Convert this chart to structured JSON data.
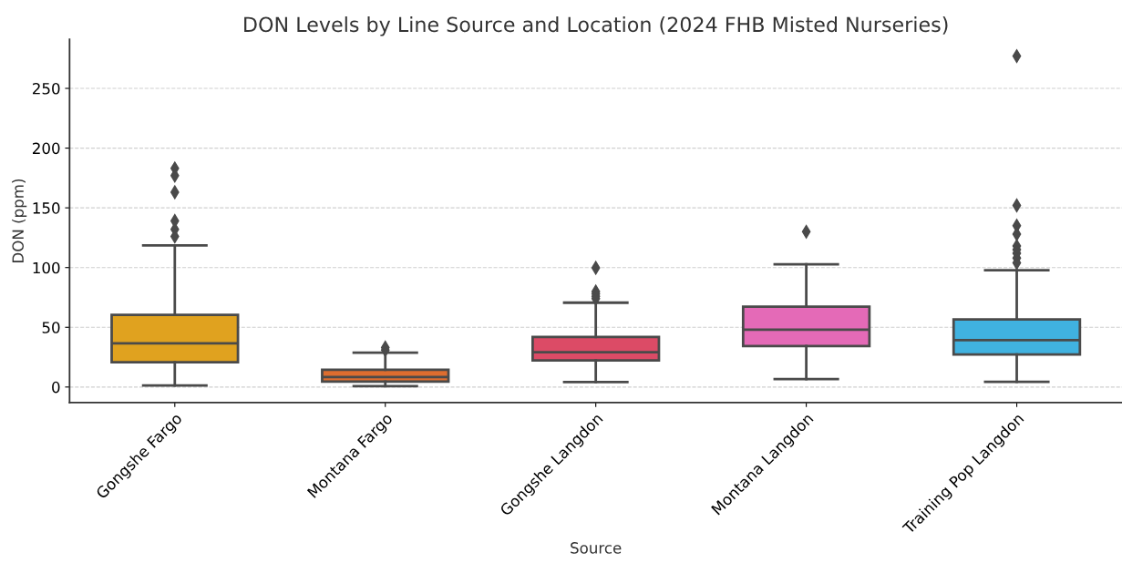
{
  "chart_data": {
    "type": "box",
    "title": "DON Levels by Line Source and Location (2024 FHB Misted Nurseries)",
    "xlabel": "Source",
    "ylabel": "DON (ppm)",
    "categories": [
      "Gongshe Fargo",
      "Montana Fargo",
      "Gongshe Langdon",
      "Montana Langdon",
      "Training Pop Langdon"
    ],
    "colors": [
      "#e0a21f",
      "#dd6d2f",
      "#dc4b66",
      "#e46ab7",
      "#40b2e0"
    ],
    "boxes": [
      {
        "low": 1.3,
        "q1": 20.8,
        "median": 36.5,
        "q3": 60.4,
        "high": 118.5,
        "outliers": [
          183,
          177,
          163,
          139,
          132,
          126
        ]
      },
      {
        "low": 0.8,
        "q1": 4.6,
        "median": 8.4,
        "q3": 14.5,
        "high": 28.7,
        "outliers": [
          31,
          33
        ]
      },
      {
        "low": 4.1,
        "q1": 22.3,
        "median": 29.2,
        "q3": 41.9,
        "high": 70.6,
        "outliers": [
          99.7,
          80,
          78,
          76,
          74
        ]
      },
      {
        "low": 6.6,
        "q1": 34.3,
        "median": 48,
        "q3": 67.3,
        "high": 102.8,
        "outliers": [
          130
        ]
      },
      {
        "low": 4.3,
        "q1": 27.2,
        "median": 39.3,
        "q3": 56.6,
        "high": 97.7,
        "outliers": [
          277,
          152,
          135,
          128,
          118,
          115,
          112,
          108,
          104
        ]
      }
    ],
    "ylim": [
      -13,
      291
    ],
    "yticks": [
      0,
      50,
      100,
      150,
      200,
      250
    ],
    "grid": "y"
  }
}
